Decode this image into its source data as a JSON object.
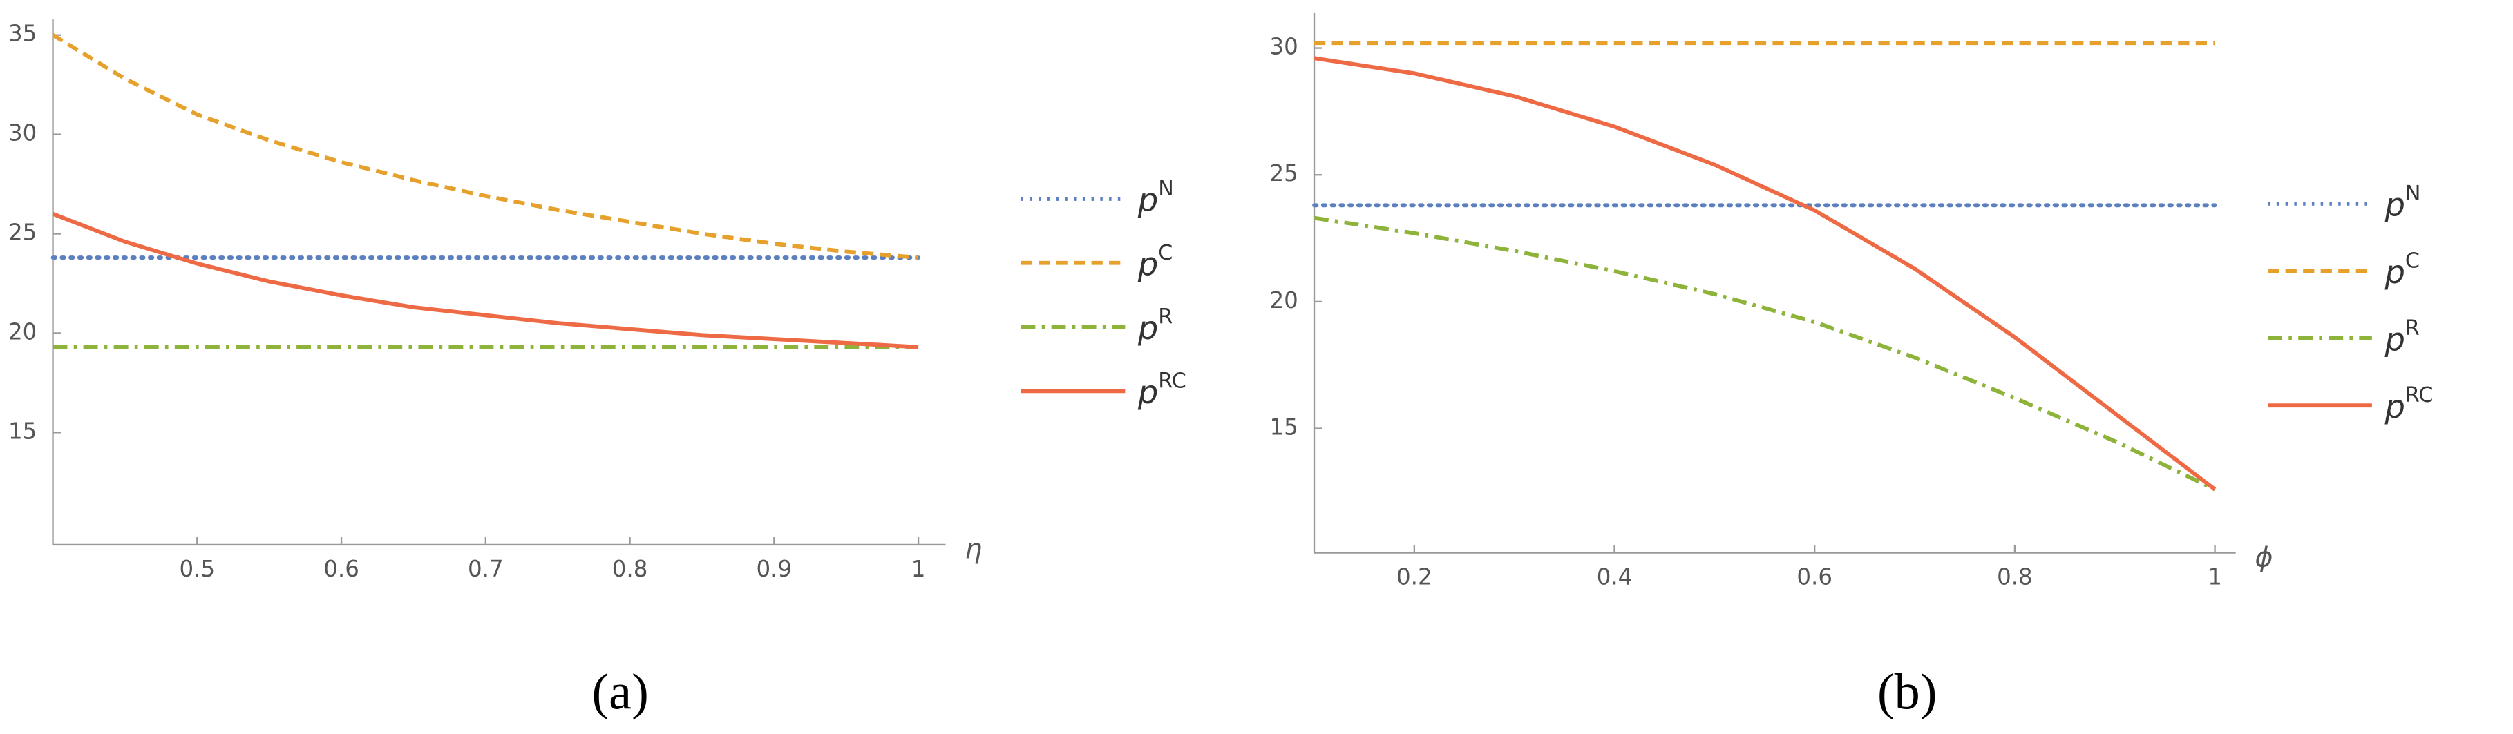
{
  "chart_data": [
    {
      "type": "line",
      "caption": "(a)",
      "x_label": "η",
      "x": [
        0.4,
        0.45,
        0.5,
        0.55,
        0.6,
        0.65,
        0.7,
        0.75,
        0.8,
        0.85,
        0.9,
        0.95,
        1.0
      ],
      "xlim": [
        0.4,
        1.0
      ],
      "xticks": [
        0.5,
        0.6,
        0.7,
        0.8,
        0.9,
        1.0
      ],
      "ylim": [
        9.35,
        35.3
      ],
      "yticks": [
        15,
        20,
        25,
        30,
        35
      ],
      "series": [
        {
          "name": "p",
          "superscript": "N",
          "color": "#5b7fbf",
          "style": "dotted",
          "values": [
            23.8,
            23.8,
            23.8,
            23.8,
            23.8,
            23.8,
            23.8,
            23.8,
            23.8,
            23.8,
            23.8,
            23.8,
            23.8
          ]
        },
        {
          "name": "p",
          "superscript": "C",
          "color": "#e5a12b",
          "style": "dashed",
          "values": [
            35,
            32.8,
            31,
            29.7,
            28.6,
            27.7,
            26.9,
            26.2,
            25.6,
            25.0,
            24.5,
            24.1,
            23.8
          ]
        },
        {
          "name": "p",
          "superscript": "R",
          "color": "#8db33a",
          "style": "dashdot",
          "values": [
            19.3,
            19.3,
            19.3,
            19.3,
            19.3,
            19.3,
            19.3,
            19.3,
            19.3,
            19.3,
            19.3,
            19.3,
            19.3
          ]
        },
        {
          "name": "p",
          "superscript": "RC",
          "color": "#ee6a45",
          "style": "solid",
          "values": [
            26,
            24.6,
            23.5,
            22.6,
            21.9,
            21.3,
            20.9,
            20.5,
            20.2,
            19.9,
            19.7,
            19.5,
            19.3
          ]
        }
      ]
    },
    {
      "type": "line",
      "caption": "(b)",
      "x_label": "ϕ",
      "x": [
        0.1,
        0.2,
        0.3,
        0.4,
        0.5,
        0.6,
        0.7,
        0.8,
        0.9,
        1.0
      ],
      "xlim": [
        0.1,
        1.0
      ],
      "xticks": [
        0.2,
        0.4,
        0.6,
        0.8,
        1.0
      ],
      "ylim": [
        10.1,
        31
      ],
      "yticks": [
        15,
        20,
        25,
        30
      ],
      "series": [
        {
          "name": "p",
          "superscript": "N",
          "color": "#5b7fbf",
          "style": "dotted",
          "values": [
            23.8,
            23.8,
            23.8,
            23.8,
            23.8,
            23.8,
            23.8,
            23.8,
            23.8,
            23.8
          ]
        },
        {
          "name": "p",
          "superscript": "C",
          "color": "#e5a12b",
          "style": "dashed",
          "values": [
            30.2,
            30.2,
            30.2,
            30.2,
            30.2,
            30.2,
            30.2,
            30.2,
            30.2,
            30.2
          ]
        },
        {
          "name": "p",
          "superscript": "R",
          "color": "#8db33a",
          "style": "dashdot",
          "values": [
            23.3,
            22.7,
            22.0,
            21.2,
            20.3,
            19.2,
            17.8,
            16.2,
            14.5,
            12.6
          ]
        },
        {
          "name": "p",
          "superscript": "RC",
          "color": "#ee6a45",
          "style": "solid",
          "values": [
            29.6,
            29.0,
            28.1,
            26.9,
            25.4,
            23.6,
            21.3,
            18.6,
            15.6,
            12.6
          ]
        }
      ]
    }
  ]
}
